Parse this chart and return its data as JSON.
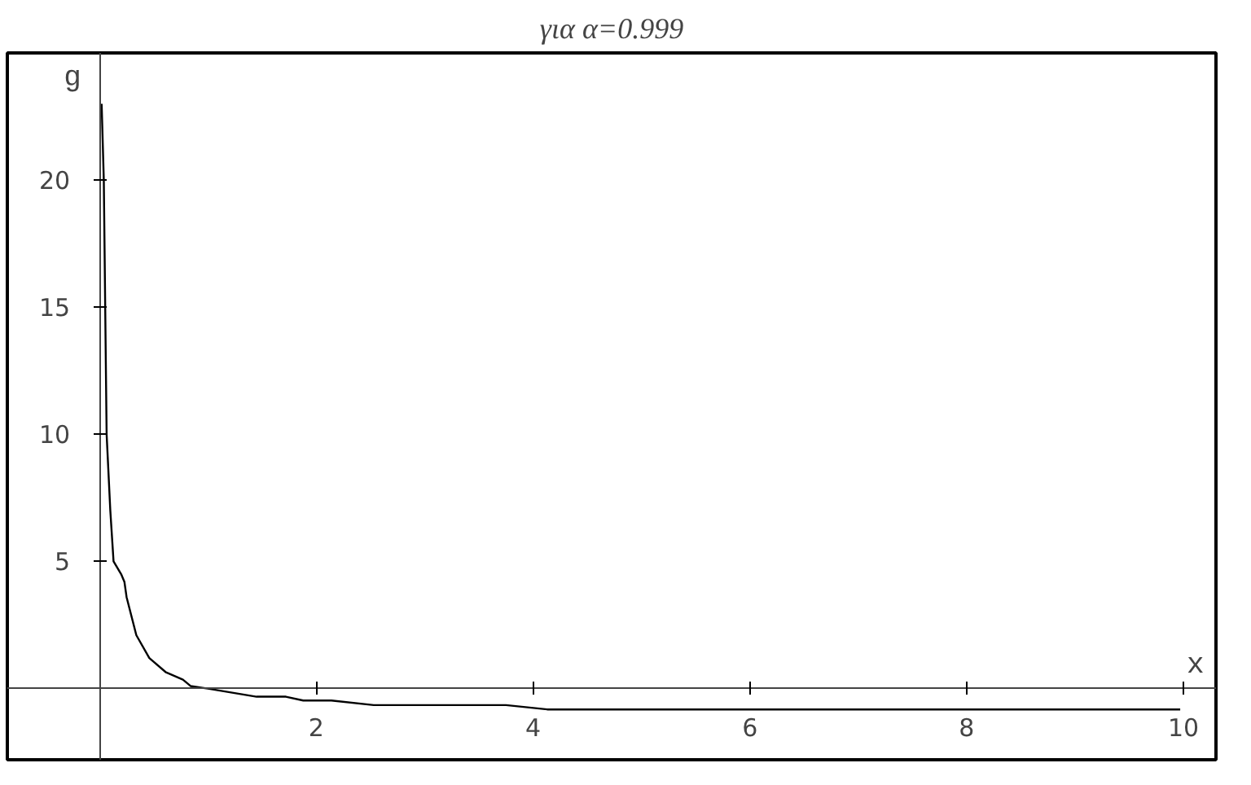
{
  "chart_data": {
    "type": "line",
    "title": "για α=0.999",
    "xlabel": "x",
    "ylabel": "g",
    "x": [
      0.02,
      0.04,
      0.066,
      0.1,
      0.13,
      0.2,
      0.23,
      0.25,
      0.34,
      0.46,
      0.61,
      0.77,
      0.84,
      1.0,
      1.45,
      1.72,
      1.88,
      2.14,
      2.53,
      3.75,
      4.13,
      9.97
    ],
    "values": [
      23,
      20,
      10,
      7,
      5,
      4.5,
      4.2,
      3.6,
      2.1,
      1.2,
      0.65,
      0.35,
      0.1,
      0,
      -0.32,
      -0.32,
      -0.47,
      -0.47,
      -0.65,
      -0.65,
      -0.82,
      -0.82
    ],
    "color": "#000000",
    "xlim": [
      -0.85,
      10.3
    ],
    "ylim": [
      -2.8,
      25
    ],
    "xticks": [
      2,
      4,
      6,
      8,
      10
    ],
    "yticks": [
      5,
      10,
      15,
      20
    ],
    "grid": false,
    "marker": "none",
    "line_style": "solid"
  }
}
